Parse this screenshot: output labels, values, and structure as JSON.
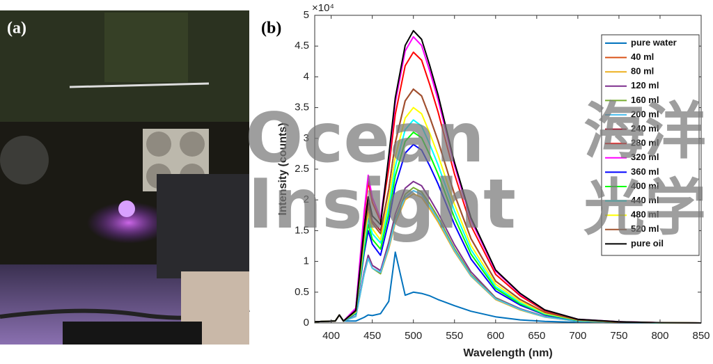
{
  "panel_labels": [
    "(a)",
    "(b)"
  ],
  "watermark": [
    "Ocean",
    "Insight",
    "海洋",
    "光学"
  ],
  "chart_data": {
    "type": "line",
    "y_label": "Intensity (counts)",
    "x_label": "Wavelength (nm)",
    "y_multiplier": "×10⁴",
    "xlim": [
      380,
      850
    ],
    "xticks": [
      400,
      450,
      500,
      550,
      600,
      650,
      700,
      750,
      800,
      850
    ],
    "ylim": [
      0,
      50000
    ],
    "yticks": [
      0,
      {
        "value": 5000,
        "label": "0.5"
      },
      {
        "value": 10000,
        "label": "1"
      },
      {
        "value": 15000,
        "label": "1.5"
      },
      {
        "value": 20000,
        "label": "2"
      },
      {
        "value": 25000,
        "label": "2.5"
      },
      {
        "value": 30000,
        "label": "3"
      },
      {
        "value": 35000,
        "label": "3.5"
      },
      {
        "value": 40000,
        "label": "4"
      },
      {
        "value": 45000,
        "label": "4.5"
      },
      {
        "value": 50000,
        "label": "5"
      }
    ],
    "grid": false,
    "legend": "upper right",
    "x": [
      380,
      405,
      410,
      415,
      430,
      440,
      445,
      450,
      460,
      470,
      478,
      490,
      500,
      510,
      520,
      530,
      550,
      570,
      600,
      630,
      660,
      700,
      750,
      800,
      850
    ],
    "series": [
      {
        "name": "pure water",
        "color": "#0072bd",
        "values": [
          200,
          300,
          1300,
          300,
          300,
          900,
          1300,
          1200,
          1500,
          3500,
          11500,
          4500,
          5000,
          4800,
          4400,
          3800,
          2800,
          1900,
          1000,
          500,
          250,
          100,
          30,
          10,
          0
        ]
      },
      {
        "name": "40 ml",
        "color": "#d95319",
        "values": [
          200,
          300,
          1300,
          300,
          1100,
          8250,
          11000,
          9350,
          8500,
          12300,
          16600,
          20400,
          21500,
          20900,
          18900,
          16800,
          11800,
          7700,
          3900,
          2200,
          970,
          280,
          90,
          20,
          0
        ]
      },
      {
        "name": "80 ml",
        "color": "#edb120",
        "values": [
          200,
          300,
          1300,
          300,
          1050,
          7900,
          10500,
          8900,
          8000,
          12000,
          16200,
          20000,
          21000,
          20400,
          18500,
          16400,
          11600,
          7600,
          3800,
          2100,
          950,
          270,
          80,
          20,
          0
        ]
      },
      {
        "name": "120 ml",
        "color": "#7e2f8e",
        "values": [
          200,
          300,
          1300,
          300,
          1100,
          8250,
          11000,
          9350,
          8500,
          13100,
          17700,
          21900,
          23000,
          22300,
          20200,
          17900,
          12700,
          8300,
          4100,
          2300,
          1040,
          300,
          90,
          20,
          0
        ]
      },
      {
        "name": "160 ml",
        "color": "#77ac30",
        "values": [
          200,
          300,
          1300,
          300,
          1050,
          7900,
          10500,
          8900,
          8000,
          12500,
          16900,
          20900,
          22000,
          21300,
          19400,
          17200,
          12100,
          7900,
          4000,
          2200,
          990,
          290,
          90,
          20,
          0
        ]
      },
      {
        "name": "200 ml",
        "color": "#4dbeee",
        "values": [
          200,
          300,
          1300,
          300,
          1050,
          7900,
          10500,
          8900,
          8200,
          12300,
          16600,
          20400,
          21500,
          20900,
          18900,
          16800,
          11800,
          7700,
          3900,
          2200,
          970,
          280,
          90,
          20,
          0
        ]
      },
      {
        "name": "240 ml",
        "color": "#a2142f",
        "values": [
          200,
          300,
          1300,
          300,
          1950,
          14600,
          19500,
          16600,
          15000,
          21700,
          29300,
          36100,
          38000,
          36900,
          33400,
          29600,
          20900,
          13700,
          6800,
          3800,
          1710,
          490,
          150,
          40,
          0
        ]
      },
      {
        "name": "280 ml",
        "color": "#ff0000",
        "values": [
          200,
          300,
          1300,
          300,
          2300,
          17300,
          23000,
          19600,
          16500,
          25100,
          33900,
          41800,
          44000,
          42700,
          38700,
          34300,
          24200,
          15800,
          7900,
          4400,
          1980,
          570,
          180,
          40,
          0
        ]
      },
      {
        "name": "320 ml",
        "color": "#ff00ff",
        "values": [
          200,
          300,
          1300,
          300,
          2400,
          18000,
          24000,
          20400,
          17000,
          26500,
          35800,
          44200,
          46500,
          45100,
          40900,
          36300,
          25600,
          16700,
          8400,
          4700,
          2090,
          600,
          190,
          50,
          0
        ]
      },
      {
        "name": "360 ml",
        "color": "#0000ff",
        "values": [
          200,
          300,
          1300,
          300,
          1500,
          11300,
          15000,
          12800,
          11000,
          16500,
          22300,
          27600,
          29000,
          28100,
          25500,
          22600,
          16000,
          10400,
          5200,
          2900,
          1300,
          380,
          120,
          30,
          0
        ]
      },
      {
        "name": "400 ml",
        "color": "#00ff00",
        "values": [
          200,
          300,
          1300,
          300,
          1600,
          12000,
          16000,
          13600,
          12000,
          17700,
          23900,
          29500,
          31000,
          30100,
          27300,
          24200,
          17100,
          11200,
          5600,
          3100,
          1400,
          400,
          120,
          30,
          0
        ]
      },
      {
        "name": "440 ml",
        "color": "#00ffff",
        "values": [
          200,
          300,
          1300,
          300,
          1700,
          12800,
          17000,
          14500,
          13000,
          18800,
          25400,
          31400,
          33000,
          32000,
          29000,
          25700,
          18200,
          11900,
          5900,
          3300,
          1490,
          430,
          130,
          30,
          0
        ]
      },
      {
        "name": "480 ml",
        "color": "#ffff00",
        "values": [
          200,
          300,
          1300,
          300,
          1800,
          13500,
          18000,
          15300,
          13500,
          20000,
          27000,
          33300,
          35000,
          34000,
          30800,
          27300,
          19300,
          12600,
          6300,
          3500,
          1580,
          460,
          140,
          40,
          0
        ]
      },
      {
        "name": "520 ml",
        "color": "#a0522d",
        "values": [
          200,
          300,
          1300,
          300,
          1900,
          14300,
          19000,
          16200,
          14500,
          21700,
          29300,
          36100,
          38000,
          36900,
          33400,
          29600,
          20900,
          13700,
          6800,
          3800,
          1710,
          490,
          150,
          40,
          0
        ]
      },
      {
        "name": "pure oil",
        "color": "#000000",
        "values": [
          200,
          300,
          1300,
          300,
          2050,
          15400,
          20500,
          17400,
          16000,
          27100,
          36600,
          45100,
          47500,
          46100,
          41800,
          37100,
          26100,
          17100,
          8600,
          4800,
          2100,
          600,
          190,
          50,
          0
        ]
      }
    ]
  }
}
